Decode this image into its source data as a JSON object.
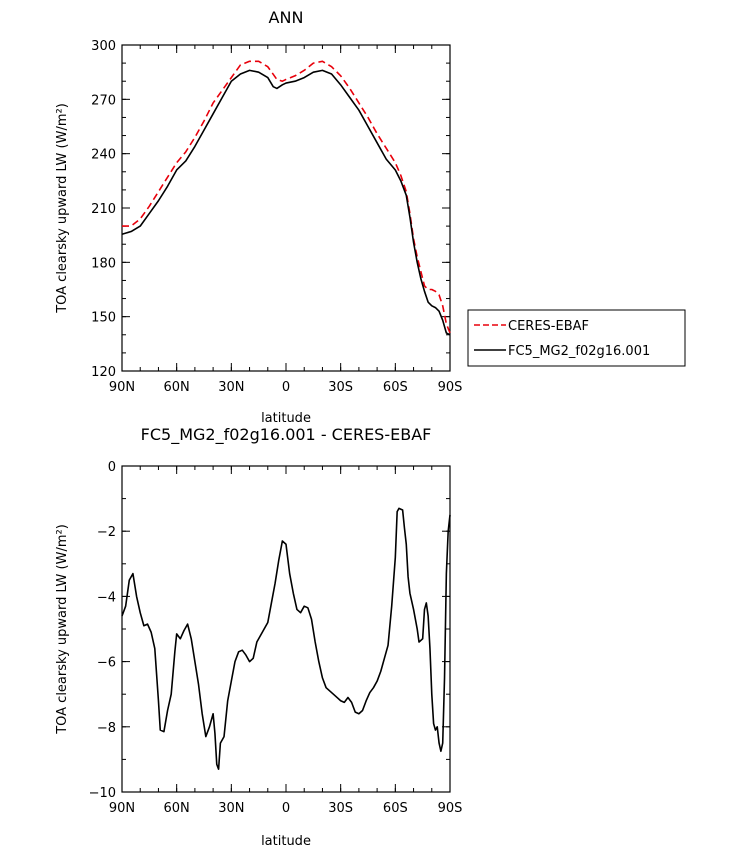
{
  "chart_data": [
    {
      "type": "line",
      "title": "ANN",
      "xlabel": "latitude",
      "ylabel": "TOA clearsky upward LW (W/m²)",
      "xlim": [
        90,
        -90
      ],
      "ylim": [
        120,
        300
      ],
      "x_ticks": [
        {
          "value": 90,
          "label": "90N"
        },
        {
          "value": 60,
          "label": "60N"
        },
        {
          "value": 30,
          "label": "30N"
        },
        {
          "value": 0,
          "label": "0"
        },
        {
          "value": -30,
          "label": "30S"
        },
        {
          "value": -60,
          "label": "60S"
        },
        {
          "value": -90,
          "label": "90S"
        }
      ],
      "y_ticks": [
        120,
        150,
        180,
        210,
        240,
        270,
        300
      ],
      "legend_placement": "right",
      "series": [
        {
          "name": "CERES-EBAF",
          "style": "dashed",
          "color": "#e8000b",
          "points": [
            [
              90,
              200
            ],
            [
              85,
              200
            ],
            [
              80,
              204
            ],
            [
              75,
              211
            ],
            [
              70,
              219
            ],
            [
              65,
              227
            ],
            [
              60,
              235
            ],
            [
              55,
              241
            ],
            [
              50,
              249
            ],
            [
              45,
              258
            ],
            [
              40,
              268
            ],
            [
              35,
              275
            ],
            [
              30,
              282
            ],
            [
              25,
              289
            ],
            [
              20,
              291
            ],
            [
              15,
              291
            ],
            [
              10,
              288
            ],
            [
              5,
              281
            ],
            [
              2,
              280
            ],
            [
              0,
              281
            ],
            [
              -5,
              283
            ],
            [
              -10,
              286
            ],
            [
              -15,
              290
            ],
            [
              -20,
              291
            ],
            [
              -25,
              288
            ],
            [
              -30,
              283
            ],
            [
              -35,
              276
            ],
            [
              -40,
              268
            ],
            [
              -45,
              260
            ],
            [
              -50,
              251
            ],
            [
              -55,
              243
            ],
            [
              -60,
              235
            ],
            [
              -63,
              228
            ],
            [
              -66,
              219
            ],
            [
              -68,
              207
            ],
            [
              -70,
              193
            ],
            [
              -72,
              183
            ],
            [
              -74,
              175
            ],
            [
              -76,
              167
            ],
            [
              -78,
              165
            ],
            [
              -80,
              165
            ],
            [
              -82,
              164
            ],
            [
              -84,
              162
            ],
            [
              -86,
              156
            ],
            [
              -88,
              146
            ],
            [
              -90,
              141
            ]
          ]
        },
        {
          "name": "FC5_MG2_f02g16.001",
          "style": "solid",
          "color": "#000000",
          "points": [
            [
              90,
              195.5
            ],
            [
              85,
              197
            ],
            [
              80,
              200
            ],
            [
              75,
              207
            ],
            [
              70,
              214
            ],
            [
              65,
              222
            ],
            [
              60,
              231
            ],
            [
              55,
              236
            ],
            [
              50,
              244
            ],
            [
              45,
              253
            ],
            [
              40,
              262
            ],
            [
              35,
              271
            ],
            [
              30,
              280
            ],
            [
              25,
              284
            ],
            [
              20,
              286
            ],
            [
              15,
              285
            ],
            [
              10,
              282
            ],
            [
              7,
              277
            ],
            [
              5,
              276
            ],
            [
              2,
              278
            ],
            [
              0,
              279
            ],
            [
              -5,
              280
            ],
            [
              -10,
              282
            ],
            [
              -15,
              285
            ],
            [
              -20,
              286
            ],
            [
              -25,
              284
            ],
            [
              -30,
              278
            ],
            [
              -35,
              271
            ],
            [
              -40,
              264
            ],
            [
              -45,
              255
            ],
            [
              -50,
              246
            ],
            [
              -55,
              237
            ],
            [
              -60,
              231
            ],
            [
              -63,
              225
            ],
            [
              -66,
              217
            ],
            [
              -68,
              205
            ],
            [
              -70,
              191
            ],
            [
              -72,
              180
            ],
            [
              -74,
              171
            ],
            [
              -76,
              164
            ],
            [
              -78,
              158
            ],
            [
              -80,
              156
            ],
            [
              -82,
              155
            ],
            [
              -84,
              153
            ],
            [
              -86,
              148
            ],
            [
              -88,
              141
            ],
            [
              -90,
              140
            ]
          ]
        }
      ]
    },
    {
      "type": "line",
      "title": "FC5_MG2_f02g16.001 - CERES-EBAF",
      "xlabel": "latitude",
      "ylabel": "TOA clearsky upward LW (W/m²)",
      "xlim": [
        90,
        -90
      ],
      "ylim": [
        -10,
        0
      ],
      "x_ticks": [
        {
          "value": 90,
          "label": "90N"
        },
        {
          "value": 60,
          "label": "60N"
        },
        {
          "value": 30,
          "label": "30N"
        },
        {
          "value": 0,
          "label": "0"
        },
        {
          "value": -30,
          "label": "30S"
        },
        {
          "value": -60,
          "label": "60S"
        },
        {
          "value": -90,
          "label": "90S"
        }
      ],
      "y_ticks": [
        -10,
        -8,
        -6,
        -4,
        -2,
        0
      ],
      "y_tick_labels": [
        "−10",
        "−8",
        "−6",
        "−4",
        "−2",
        "0"
      ],
      "series": [
        {
          "color": "#000000",
          "points": [
            [
              90,
              -4.6
            ],
            [
              88,
              -4.3
            ],
            [
              86,
              -3.5
            ],
            [
              84,
              -3.3
            ],
            [
              82,
              -4.0
            ],
            [
              80,
              -4.5
            ],
            [
              78,
              -4.9
            ],
            [
              76,
              -4.85
            ],
            [
              74,
              -5.1
            ],
            [
              72,
              -5.6
            ],
            [
              70,
              -7.2
            ],
            [
              69,
              -8.1
            ],
            [
              67,
              -8.15
            ],
            [
              65,
              -7.5
            ],
            [
              63,
              -7.0
            ],
            [
              61,
              -5.7
            ],
            [
              60,
              -5.15
            ],
            [
              58,
              -5.3
            ],
            [
              56,
              -5.05
            ],
            [
              54,
              -4.85
            ],
            [
              52,
              -5.3
            ],
            [
              50,
              -6.0
            ],
            [
              48,
              -6.7
            ],
            [
              46,
              -7.6
            ],
            [
              44,
              -8.3
            ],
            [
              42,
              -8.0
            ],
            [
              40,
              -7.6
            ],
            [
              39,
              -8.2
            ],
            [
              38,
              -9.15
            ],
            [
              37,
              -9.3
            ],
            [
              36,
              -8.5
            ],
            [
              34,
              -8.3
            ],
            [
              32,
              -7.2
            ],
            [
              30,
              -6.6
            ],
            [
              28,
              -6.0
            ],
            [
              26,
              -5.7
            ],
            [
              24,
              -5.65
            ],
            [
              22,
              -5.8
            ],
            [
              20,
              -6.0
            ],
            [
              18,
              -5.9
            ],
            [
              16,
              -5.4
            ],
            [
              14,
              -5.2
            ],
            [
              12,
              -5.0
            ],
            [
              10,
              -4.8
            ],
            [
              8,
              -4.2
            ],
            [
              6,
              -3.6
            ],
            [
              4,
              -2.9
            ],
            [
              2,
              -2.3
            ],
            [
              0,
              -2.4
            ],
            [
              -2,
              -3.3
            ],
            [
              -4,
              -3.9
            ],
            [
              -6,
              -4.4
            ],
            [
              -8,
              -4.5
            ],
            [
              -10,
              -4.3
            ],
            [
              -12,
              -4.35
            ],
            [
              -14,
              -4.7
            ],
            [
              -16,
              -5.4
            ],
            [
              -18,
              -6.0
            ],
            [
              -20,
              -6.5
            ],
            [
              -22,
              -6.8
            ],
            [
              -24,
              -6.9
            ],
            [
              -26,
              -7.0
            ],
            [
              -28,
              -7.1
            ],
            [
              -30,
              -7.2
            ],
            [
              -32,
              -7.25
            ],
            [
              -34,
              -7.1
            ],
            [
              -36,
              -7.25
            ],
            [
              -38,
              -7.55
            ],
            [
              -40,
              -7.6
            ],
            [
              -42,
              -7.5
            ],
            [
              -44,
              -7.2
            ],
            [
              -46,
              -6.95
            ],
            [
              -48,
              -6.8
            ],
            [
              -50,
              -6.6
            ],
            [
              -52,
              -6.3
            ],
            [
              -54,
              -5.9
            ],
            [
              -56,
              -5.5
            ],
            [
              -58,
              -4.3
            ],
            [
              -60,
              -2.8
            ],
            [
              -61,
              -1.4
            ],
            [
              -62,
              -1.3
            ],
            [
              -64,
              -1.35
            ],
            [
              -65,
              -1.9
            ],
            [
              -66,
              -2.4
            ],
            [
              -67,
              -3.4
            ],
            [
              -68,
              -3.9
            ],
            [
              -70,
              -4.4
            ],
            [
              -72,
              -5.0
            ],
            [
              -73,
              -5.4
            ],
            [
              -75,
              -5.3
            ],
            [
              -76,
              -4.4
            ],
            [
              -77,
              -4.2
            ],
            [
              -78,
              -4.6
            ],
            [
              -79,
              -5.6
            ],
            [
              -80,
              -7.0
            ],
            [
              -81,
              -7.9
            ],
            [
              -82,
              -8.1
            ],
            [
              -83,
              -8.0
            ],
            [
              -84,
              -8.5
            ],
            [
              -85,
              -8.75
            ],
            [
              -86,
              -8.5
            ],
            [
              -87,
              -6.5
            ],
            [
              -88,
              -3.3
            ],
            [
              -89,
              -2.0
            ],
            [
              -90,
              -1.5
            ]
          ]
        }
      ]
    }
  ]
}
